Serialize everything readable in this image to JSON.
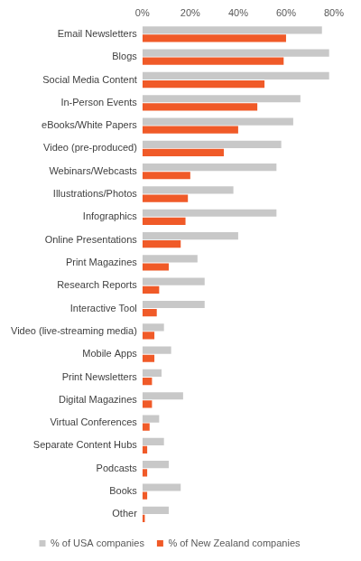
{
  "chart_data": {
    "type": "bar",
    "orientation": "horizontal",
    "categories": [
      "Email Newsletters",
      "Blogs",
      "Social Media Content",
      "In-Person Events",
      "eBooks/White Papers",
      "Video (pre-produced)",
      "Webinars/Webcasts",
      "Illustrations/Photos",
      "Infographics",
      "Online Presentations",
      "Print Magazines",
      "Research Reports",
      "Interactive Tool",
      "Video (live-streaming media)",
      "Mobile Apps",
      "Print Newsletters",
      "Digital Magazines",
      "Virtual Conferences",
      "Separate Content Hubs",
      "Podcasts",
      "Books",
      "Other"
    ],
    "series": [
      {
        "name": "% of USA companies",
        "color": "#c8c8c8",
        "values": [
          75,
          78,
          78,
          66,
          63,
          58,
          56,
          38,
          56,
          40,
          23,
          26,
          26,
          9,
          12,
          8,
          17,
          7,
          9,
          11,
          16,
          11
        ]
      },
      {
        "name": "% of New Zealand companies",
        "color": "#f05a28",
        "values": [
          60,
          59,
          51,
          48,
          40,
          34,
          20,
          19,
          18,
          16,
          11,
          7,
          6,
          5,
          5,
          4,
          4,
          3,
          2,
          2,
          2,
          1
        ]
      }
    ],
    "xlim": [
      0,
      80
    ],
    "xticks": [
      {
        "value": 0,
        "label": "0%"
      },
      {
        "value": 20,
        "label": "20%"
      },
      {
        "value": 40,
        "label": "40%"
      },
      {
        "value": 60,
        "label": "60%"
      },
      {
        "value": 80,
        "label": "80%"
      }
    ],
    "grid": false,
    "legend": "bottom"
  }
}
